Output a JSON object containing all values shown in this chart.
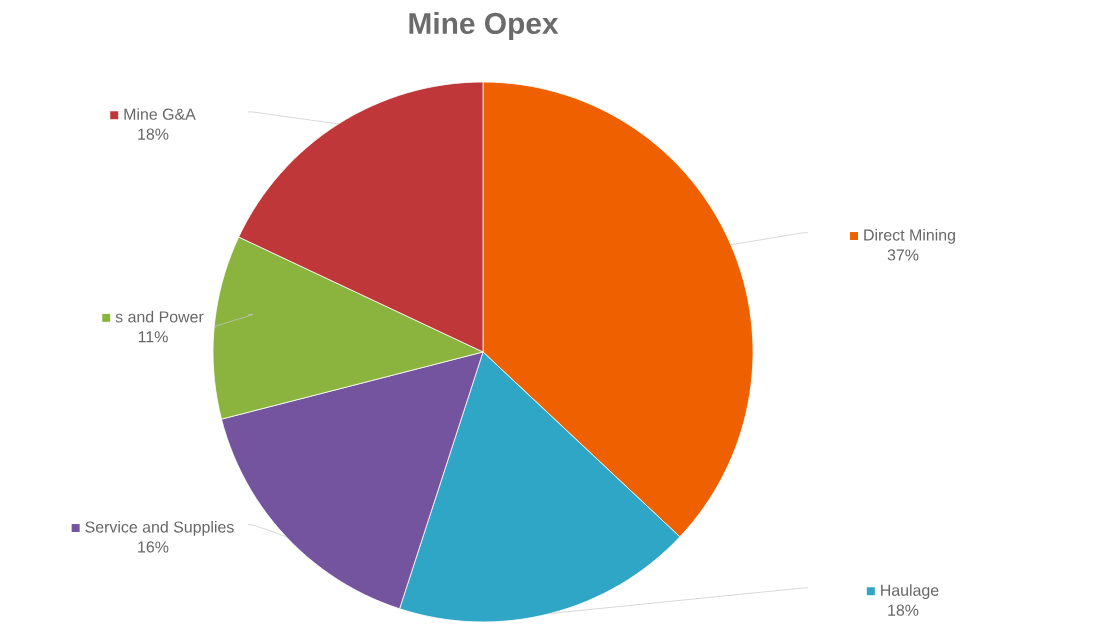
{
  "chart_data": {
    "type": "pie",
    "title": "Mine Opex",
    "categories": [
      "Direct Mining",
      "Haulage",
      "Service and Supplies",
      "s and Power",
      "Mine G&A"
    ],
    "values": [
      37,
      18,
      16,
      11,
      18
    ],
    "value_labels": [
      "37%",
      "18%",
      "16%",
      "11%",
      "18%"
    ],
    "colors": [
      "#ee6000",
      "#2fa6c6",
      "#74539f",
      "#8ab43e",
      "#bf3738"
    ],
    "legend": "right"
  }
}
